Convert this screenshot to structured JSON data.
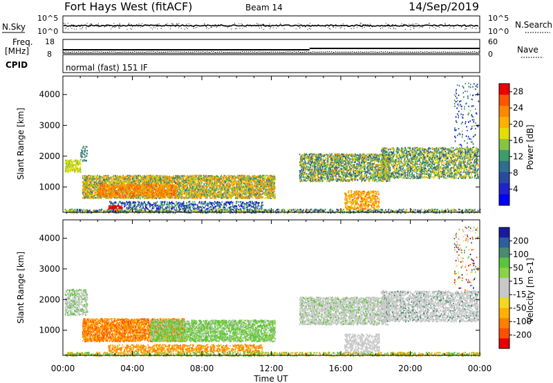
{
  "header": {
    "station": "Fort Hays West (fitACF)",
    "beam": "Beam 14",
    "date": "14/Sep/2019"
  },
  "top_panels": {
    "nsky_label": "N.Sky",
    "nsky_ticks": [
      "10^5",
      "10^0"
    ],
    "nsearch_label": "N.Search",
    "nsearch_ticks": [
      "10^5",
      "10^0"
    ],
    "freq_label_1": "Freq.",
    "freq_label_2": "[MHz]",
    "freq_ticks": [
      "18",
      "8"
    ],
    "nave_label": "Nave",
    "nave_ticks": [
      "60",
      "0"
    ],
    "cpid_label": "CPID",
    "cpid_text": "normal (fast) 151 IF"
  },
  "chart_data": [
    {
      "type": "heatmap",
      "name": "power",
      "ylabel": "Slant Range [km]",
      "yticks": [
        "4000",
        "3000",
        "2000",
        "1000"
      ],
      "ylim": [
        180,
        4600
      ],
      "xlim": [
        0,
        24
      ],
      "colorbar": {
        "label": "Power [dB]",
        "ticks": [
          "28",
          "24",
          "20",
          "16",
          "12",
          "8",
          "4"
        ],
        "colors": [
          "#ee0000",
          "#ff5500",
          "#ff8800",
          "#ffb000",
          "#e6dc00",
          "#88c444",
          "#3c9c6c",
          "#2e6e8e",
          "#284a9e",
          "#2222cc",
          "#0000ff"
        ],
        "range": [
          0,
          30
        ]
      }
    },
    {
      "type": "heatmap",
      "name": "velocity",
      "ylabel": "Slant Range [km]",
      "yticks": [
        "4000",
        "3000",
        "2000",
        "1000"
      ],
      "ylim": [
        180,
        4600
      ],
      "xlim": [
        0,
        24
      ],
      "xticks": [
        "00:00",
        "04:00",
        "08:00",
        "12:00",
        "16:00",
        "20:00",
        "00:00"
      ],
      "xlabel": "Time UT",
      "colorbar": {
        "label": "Velocity [m s-1]",
        "ticks": [
          "200",
          "100",
          "50",
          "15",
          "-15",
          "-50",
          "-100",
          "-200"
        ],
        "colors": [
          "#1a1a9e",
          "#2e5e9e",
          "#4a8a6e",
          "#5cc43c",
          "#8ad444",
          "#c8c8c8",
          "#c8c8c8",
          "#f4d820",
          "#ffb000",
          "#ff8000",
          "#ff5000",
          "#e60000"
        ]
      }
    }
  ]
}
